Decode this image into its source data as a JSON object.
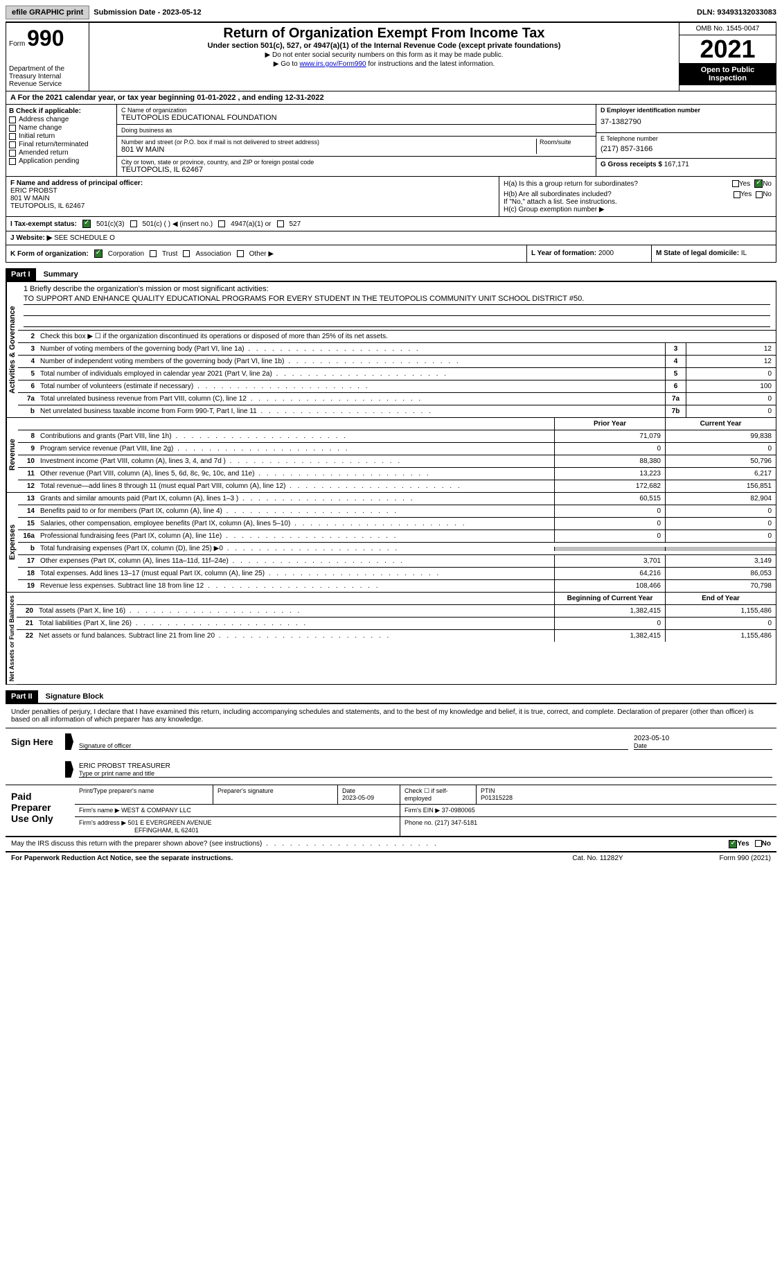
{
  "topbar": {
    "efile": "efile GRAPHIC print",
    "submission": "Submission Date - 2023-05-12",
    "dln": "DLN: 93493132033083"
  },
  "header": {
    "form_prefix": "Form",
    "form_num": "990",
    "dept": "Department of the Treasury Internal Revenue Service",
    "title": "Return of Organization Exempt From Income Tax",
    "sub": "Under section 501(c), 527, or 4947(a)(1) of the Internal Revenue Code (except private foundations)",
    "note1": "▶ Do not enter social security numbers on this form as it may be made public.",
    "note2_pre": "▶ Go to ",
    "note2_link": "www.irs.gov/Form990",
    "note2_post": " for instructions and the latest information.",
    "omb": "OMB No. 1545-0047",
    "year": "2021",
    "inspection": "Open to Public Inspection"
  },
  "period": "A For the 2021 calendar year, or tax year beginning 01-01-2022  , and ending 12-31-2022",
  "section_b": {
    "label": "B Check if applicable:",
    "items": [
      "Address change",
      "Name change",
      "Initial return",
      "Final return/terminated",
      "Amended return",
      "Application pending"
    ]
  },
  "section_c": {
    "name_label": "C Name of organization",
    "name": "TEUTOPOLIS EDUCATIONAL FOUNDATION",
    "dba_label": "Doing business as",
    "dba": "",
    "addr_label": "Number and street (or P.O. box if mail is not delivered to street address)",
    "room_label": "Room/suite",
    "addr": "801 W MAIN",
    "city_label": "City or town, state or province, country, and ZIP or foreign postal code",
    "city": "TEUTOPOLIS, IL  62467"
  },
  "section_d": {
    "label": "D Employer identification number",
    "value": "37-1382790"
  },
  "section_e": {
    "label": "E Telephone number",
    "value": "(217) 857-3166"
  },
  "section_g": {
    "label": "G Gross receipts $",
    "value": "167,171"
  },
  "section_f": {
    "label": "F Name and address of principal officer:",
    "name": "ERIC PROBST",
    "addr": "801 W MAIN",
    "city": "TEUTOPOLIS, IL  62467"
  },
  "section_h": {
    "ha": "H(a)  Is this a group return for subordinates?",
    "hb": "H(b)  Are all subordinates included?",
    "hb_note": "If \"No,\" attach a list. See instructions.",
    "hc": "H(c)  Group exemption number ▶"
  },
  "status": {
    "label": "I   Tax-exempt status:",
    "opts": [
      "501(c)(3)",
      "501(c) (  ) ◀ (insert no.)",
      "4947(a)(1) or",
      "527"
    ]
  },
  "website": {
    "label": "J  Website: ▶",
    "value": "SEE SCHEDULE O"
  },
  "section_k": {
    "label": "K Form of organization:",
    "opts": [
      "Corporation",
      "Trust",
      "Association",
      "Other ▶"
    ]
  },
  "section_l": {
    "label": "L Year of formation:",
    "value": "2000"
  },
  "section_m": {
    "label": "M State of legal domicile:",
    "value": "IL"
  },
  "part1": {
    "header": "Part I",
    "title": "Summary"
  },
  "mission": {
    "label": "1   Briefly describe the organization's mission or most significant activities:",
    "text": "TO SUPPORT AND ENHANCE QUALITY EDUCATIONAL PROGRAMS FOR EVERY STUDENT IN THE TEUTOPOLIS COMMUNITY UNIT SCHOOL DISTRICT #50."
  },
  "governance": {
    "label": "Activities & Governance",
    "line2": "Check this box ▶ ☐ if the organization discontinued its operations or disposed of more than 25% of its net assets.",
    "rows": [
      {
        "n": "3",
        "t": "Number of voting members of the governing body (Part VI, line 1a)",
        "b": "3",
        "v": "12"
      },
      {
        "n": "4",
        "t": "Number of independent voting members of the governing body (Part VI, line 1b)",
        "b": "4",
        "v": "12"
      },
      {
        "n": "5",
        "t": "Total number of individuals employed in calendar year 2021 (Part V, line 2a)",
        "b": "5",
        "v": "0"
      },
      {
        "n": "6",
        "t": "Total number of volunteers (estimate if necessary)",
        "b": "6",
        "v": "100"
      },
      {
        "n": "7a",
        "t": "Total unrelated business revenue from Part VIII, column (C), line 12",
        "b": "7a",
        "v": "0"
      },
      {
        "n": "b",
        "t": "Net unrelated business taxable income from Form 990-T, Part I, line 11",
        "b": "7b",
        "v": "0"
      }
    ]
  },
  "revenue": {
    "label": "Revenue",
    "header_prior": "Prior Year",
    "header_current": "Current Year",
    "rows": [
      {
        "n": "8",
        "t": "Contributions and grants (Part VIII, line 1h)",
        "p": "71,079",
        "c": "99,838"
      },
      {
        "n": "9",
        "t": "Program service revenue (Part VIII, line 2g)",
        "p": "0",
        "c": "0"
      },
      {
        "n": "10",
        "t": "Investment income (Part VIII, column (A), lines 3, 4, and 7d )",
        "p": "88,380",
        "c": "50,796"
      },
      {
        "n": "11",
        "t": "Other revenue (Part VIII, column (A), lines 5, 6d, 8c, 9c, 10c, and 11e)",
        "p": "13,223",
        "c": "6,217"
      },
      {
        "n": "12",
        "t": "Total revenue—add lines 8 through 11 (must equal Part VIII, column (A), line 12)",
        "p": "172,682",
        "c": "156,851"
      }
    ]
  },
  "expenses": {
    "label": "Expenses",
    "rows": [
      {
        "n": "13",
        "t": "Grants and similar amounts paid (Part IX, column (A), lines 1–3 )",
        "p": "60,515",
        "c": "82,904"
      },
      {
        "n": "14",
        "t": "Benefits paid to or for members (Part IX, column (A), line 4)",
        "p": "0",
        "c": "0"
      },
      {
        "n": "15",
        "t": "Salaries, other compensation, employee benefits (Part IX, column (A), lines 5–10)",
        "p": "0",
        "c": "0"
      },
      {
        "n": "16a",
        "t": "Professional fundraising fees (Part IX, column (A), line 11e)",
        "p": "0",
        "c": "0"
      },
      {
        "n": "b",
        "t": "Total fundraising expenses (Part IX, column (D), line 25) ▶0",
        "p": "",
        "c": "",
        "gray": true
      },
      {
        "n": "17",
        "t": "Other expenses (Part IX, column (A), lines 11a–11d, 11f–24e)",
        "p": "3,701",
        "c": "3,149"
      },
      {
        "n": "18",
        "t": "Total expenses. Add lines 13–17 (must equal Part IX, column (A), line 25)",
        "p": "64,216",
        "c": "86,053"
      },
      {
        "n": "19",
        "t": "Revenue less expenses. Subtract line 18 from line 12",
        "p": "108,466",
        "c": "70,798"
      }
    ]
  },
  "netassets": {
    "label": "Net Assets or Fund Balances",
    "header_begin": "Beginning of Current Year",
    "header_end": "End of Year",
    "rows": [
      {
        "n": "20",
        "t": "Total assets (Part X, line 16)",
        "p": "1,382,415",
        "c": "1,155,486"
      },
      {
        "n": "21",
        "t": "Total liabilities (Part X, line 26)",
        "p": "0",
        "c": "0"
      },
      {
        "n": "22",
        "t": "Net assets or fund balances. Subtract line 21 from line 20",
        "p": "1,382,415",
        "c": "1,155,486"
      }
    ]
  },
  "part2": {
    "header": "Part II",
    "title": "Signature Block"
  },
  "sig": {
    "intro": "Under penalties of perjury, I declare that I have examined this return, including accompanying schedules and statements, and to the best of my knowledge and belief, it is true, correct, and complete. Declaration of preparer (other than officer) is based on all information of which preparer has any knowledge.",
    "sign_here": "Sign Here",
    "officer_sig": "Signature of officer",
    "date1": "2023-05-10",
    "date_label": "Date",
    "name": "ERIC PROBST  TREASURER",
    "name_label": "Type or print name and title"
  },
  "preparer": {
    "label": "Paid Preparer Use Only",
    "print_label": "Print/Type preparer's name",
    "sig_label": "Preparer's signature",
    "date_label": "Date",
    "date": "2023-05-09",
    "check_label": "Check ☐ if self-employed",
    "ptin_label": "PTIN",
    "ptin": "P01315228",
    "firm_name_label": "Firm's name   ▶",
    "firm_name": "WEST & COMPANY LLC",
    "firm_ein_label": "Firm's EIN ▶",
    "firm_ein": "37-0980065",
    "firm_addr_label": "Firm's address ▶",
    "firm_addr": "501 E EVERGREEN AVENUE",
    "firm_city": "EFFINGHAM, IL  62401",
    "phone_label": "Phone no.",
    "phone": "(217) 347-5181"
  },
  "discuss": "May the IRS discuss this return with the preparer shown above? (see instructions)",
  "footer": {
    "left": "For Paperwork Reduction Act Notice, see the separate instructions.",
    "mid": "Cat. No. 11282Y",
    "right": "Form 990 (2021)"
  }
}
